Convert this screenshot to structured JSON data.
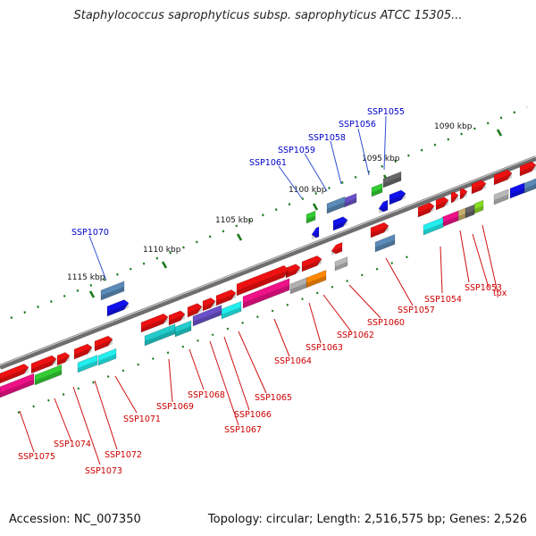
{
  "title": "Staphylococcus saprophyticus subsp. saprophyticus ATCC 15305...",
  "accession_label": "Accession: NC_007350",
  "summary_label": "Topology: circular; Length: 2,516,575 bp; Genes: 2,526",
  "scale_labels": [
    "1090 kbp",
    "1095 kbp",
    "1100 kbp",
    "1105 kbp",
    "1110 kbp",
    "1115 kbp"
  ],
  "gene_labels_blue": [
    "SSP1055",
    "SSP1056",
    "SSP1058",
    "SSP1059",
    "SSP1061",
    "SSP1070"
  ],
  "gene_labels_red": [
    "SSP1053",
    "SSP1054",
    "tpx",
    "SSP1057",
    "SSP1060",
    "SSP1062",
    "SSP1063",
    "SSP1064",
    "SSP1065",
    "SSP1066",
    "SSP1067",
    "SSP1068",
    "SSP1069",
    "SSP1071",
    "SSP1072",
    "SSP1073",
    "SSP1074",
    "SSP1075"
  ],
  "colors": {
    "backbone": "#707070",
    "scale_ticks": "#1a7a1a",
    "label_blue": "#0000cc",
    "label_red": "#cc0000"
  }
}
